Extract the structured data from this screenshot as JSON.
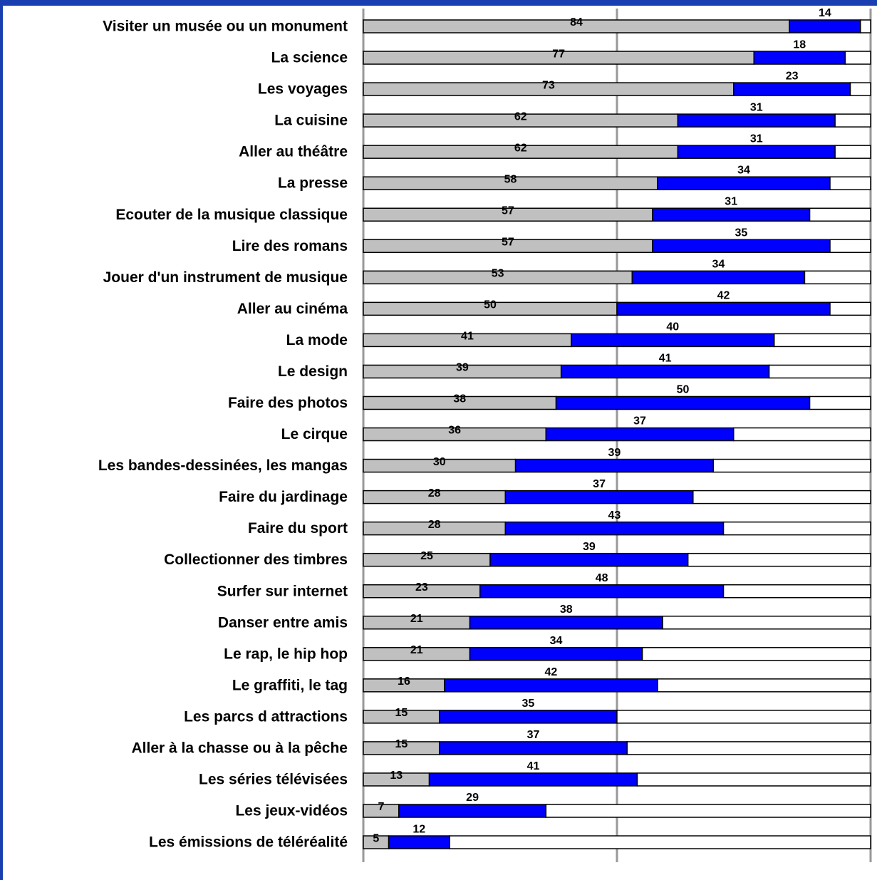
{
  "chart_data": {
    "type": "stacked-bar-horizontal",
    "categories": [
      "Visiter un musée ou un monument",
      "La science",
      "Les voyages",
      "La cuisine",
      "Aller au théâtre",
      "La presse",
      "Ecouter de la musique classique",
      "Lire des romans",
      "Jouer d'un instrument de musique",
      "Aller au cinéma",
      "La mode",
      "Le design",
      "Faire des photos",
      "Le cirque",
      "Les bandes-dessinées, les mangas",
      "Faire du jardinage",
      "Faire du sport",
      "Collectionner des timbres",
      "Surfer sur internet",
      "Danser entre amis",
      "Le rap, le hip hop",
      "Le graffiti, le tag",
      "Les parcs d attractions",
      "Aller à la chasse ou à la pêche",
      "Les séries télévisées",
      "Les jeux-vidéos",
      "Les émissions de téléréalité"
    ],
    "series": [
      {
        "color": "#c0c0c0",
        "values": [
          84,
          77,
          73,
          62,
          62,
          58,
          57,
          57,
          53,
          50,
          41,
          39,
          38,
          36,
          30,
          28,
          28,
          25,
          23,
          21,
          21,
          16,
          15,
          15,
          13,
          7,
          5
        ]
      },
      {
        "color": "#0000ff",
        "values": [
          14,
          18,
          23,
          31,
          31,
          34,
          31,
          35,
          34,
          42,
          40,
          41,
          50,
          37,
          39,
          37,
          43,
          39,
          48,
          38,
          34,
          42,
          35,
          37,
          41,
          29,
          12
        ]
      },
      {
        "color": "#ffffff",
        "values": [
          2,
          5,
          4,
          7,
          7,
          8,
          12,
          8,
          13,
          8,
          19,
          20,
          12,
          27,
          31,
          35,
          29,
          36,
          29,
          41,
          45,
          42,
          50,
          48,
          46,
          64,
          83
        ]
      }
    ],
    "xlim": [
      0,
      100
    ],
    "xticks": [
      0,
      50,
      100
    ],
    "grid": true
  }
}
